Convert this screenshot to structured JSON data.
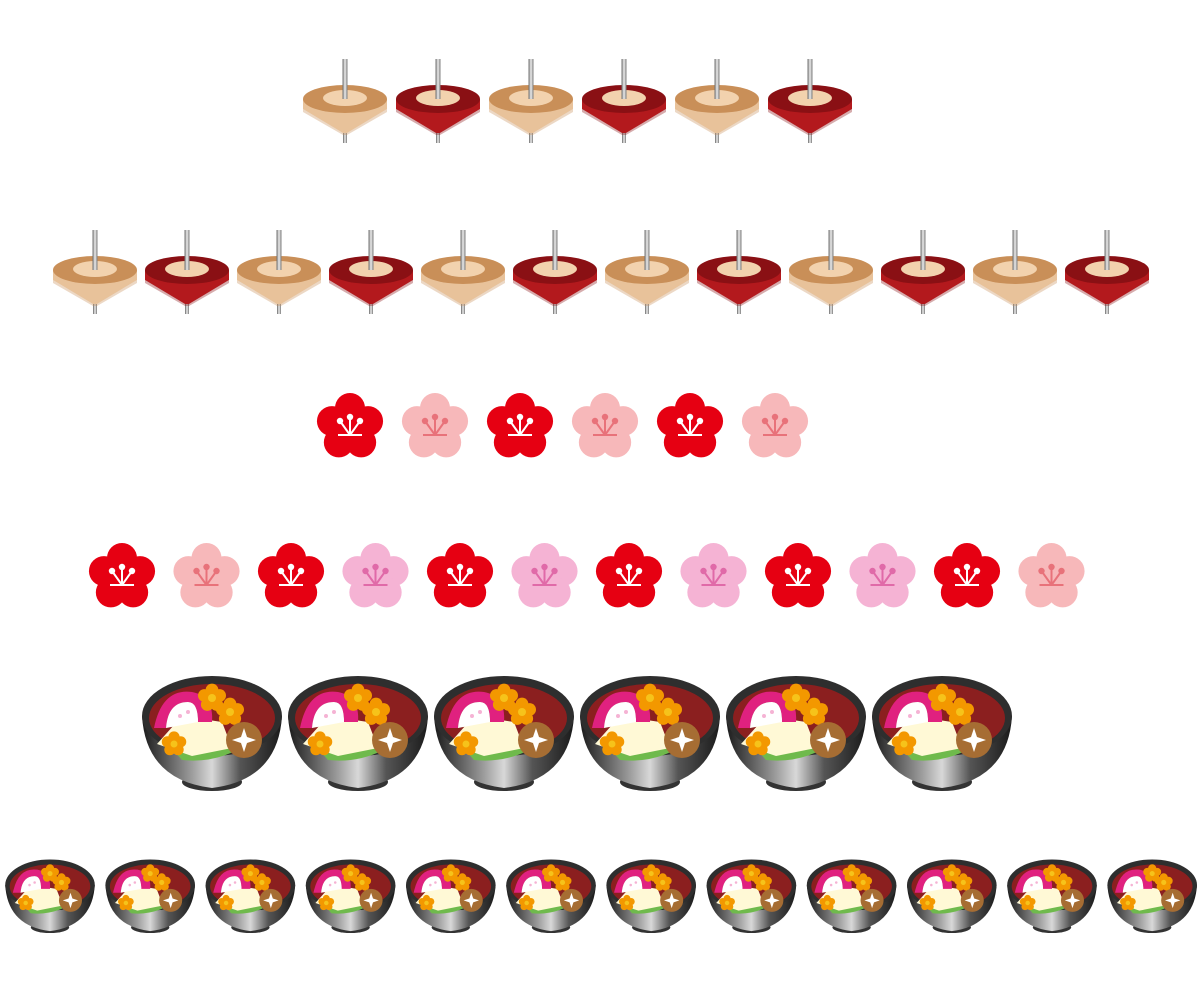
{
  "colors": {
    "top_tan_body": "#e8c29a",
    "top_tan_rim": "#c98f58",
    "top_red_body": "#b3191d",
    "top_red_rim": "#8a1014",
    "top_inner": "#f2d2ae",
    "plum_red": "#e60012",
    "plum_pink": "#f7b8ba",
    "plum_pink_alt": "#f5b3d4",
    "bowl_dark": "#2e2e2e",
    "bowl_lacquer": "#8b1f1f",
    "kamaboko": "#e0217f",
    "mochi": "#fff9d6",
    "carrot_flower": "#f39800",
    "greens": "#6fba4c",
    "shiitake": "#a66d33"
  },
  "rows": [
    {
      "kind": "top",
      "icon": "spinning-top-icon",
      "variants": [
        "tan",
        "red",
        "tan",
        "red",
        "tan",
        "red"
      ]
    },
    {
      "kind": "top",
      "icon": "spinning-top-icon",
      "variants": [
        "tan",
        "red",
        "tan",
        "red",
        "tan",
        "red",
        "tan",
        "red",
        "tan",
        "red",
        "tan",
        "red"
      ]
    },
    {
      "kind": "plum",
      "icon": "plum-blossom-icon",
      "variants": [
        "red",
        "pink",
        "red",
        "pink",
        "red",
        "pink"
      ]
    },
    {
      "kind": "plum",
      "icon": "plum-blossom-icon",
      "variants": [
        "red",
        "pink",
        "red",
        "pink2",
        "red",
        "pink2",
        "red",
        "pink2",
        "red",
        "pink2",
        "red",
        "pink"
      ]
    },
    {
      "kind": "zoni",
      "icon": "ozoni-bowl-icon",
      "variants": [
        "a",
        "a",
        "a",
        "a",
        "a",
        "a"
      ]
    },
    {
      "kind": "zoni",
      "icon": "ozoni-bowl-icon",
      "variants": [
        "a",
        "a",
        "a",
        "a",
        "a",
        "a",
        "a",
        "a",
        "a",
        "a",
        "a",
        "a"
      ]
    }
  ]
}
